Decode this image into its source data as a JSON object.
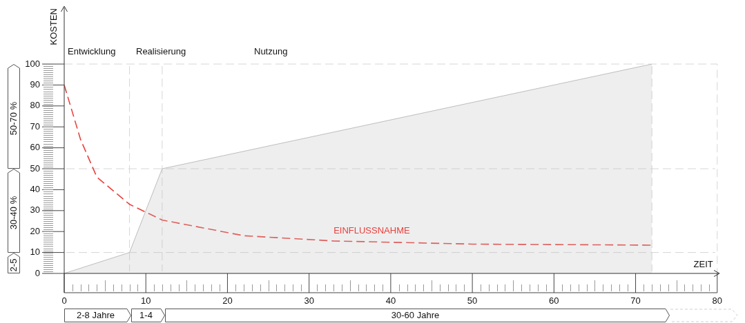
{
  "chart_data": {
    "type": "line",
    "xlabel": "ZEIT",
    "ylabel": "KOSTEN",
    "xlim": [
      0,
      80
    ],
    "xticks": [
      0,
      10,
      20,
      30,
      40,
      50,
      60,
      70,
      80
    ],
    "ylim": [
      0,
      100
    ],
    "yticks": [
      0,
      10,
      20,
      30,
      40,
      50,
      60,
      70,
      80,
      90,
      100
    ],
    "grid": false,
    "legend": false,
    "marker": "none",
    "series": [
      {
        "type": "area",
        "color": "#bdbdbd",
        "x": [
          0,
          8,
          12,
          72
        ],
        "values": [
          0,
          10,
          50,
          100
        ]
      },
      {
        "type": "line",
        "name": "EINFLUSSNAHME",
        "color": "#e8403c",
        "line_style": "dashed",
        "x": [
          0,
          2,
          4,
          8,
          12,
          22,
          33,
          50,
          72
        ],
        "values": [
          90,
          64,
          46,
          33,
          25.5,
          18,
          15.5,
          14,
          13.5
        ]
      }
    ],
    "ref_lines": [
      {
        "axis": "x",
        "value": 8,
        "color": "#d6d6d6",
        "line_style": "dashed"
      },
      {
        "axis": "x",
        "value": 12,
        "color": "#d6d6d6",
        "line_style": "dashed"
      },
      {
        "axis": "x",
        "value": 72,
        "color": "#d6d6d6",
        "line_style": "dashed"
      },
      {
        "axis": "y",
        "value": 10,
        "color": "#d6d6d6",
        "line_style": "dashed"
      },
      {
        "axis": "y",
        "value": 50,
        "color": "#d6d6d6",
        "line_style": "dashed"
      }
    ],
    "annotations": [
      "Entwicklung",
      "Realisierung",
      "Nutzung",
      "2-8 Jahre",
      "1-4",
      "30-60 Jahre",
      "2-5",
      "30-40 %",
      "50-70 %"
    ]
  }
}
